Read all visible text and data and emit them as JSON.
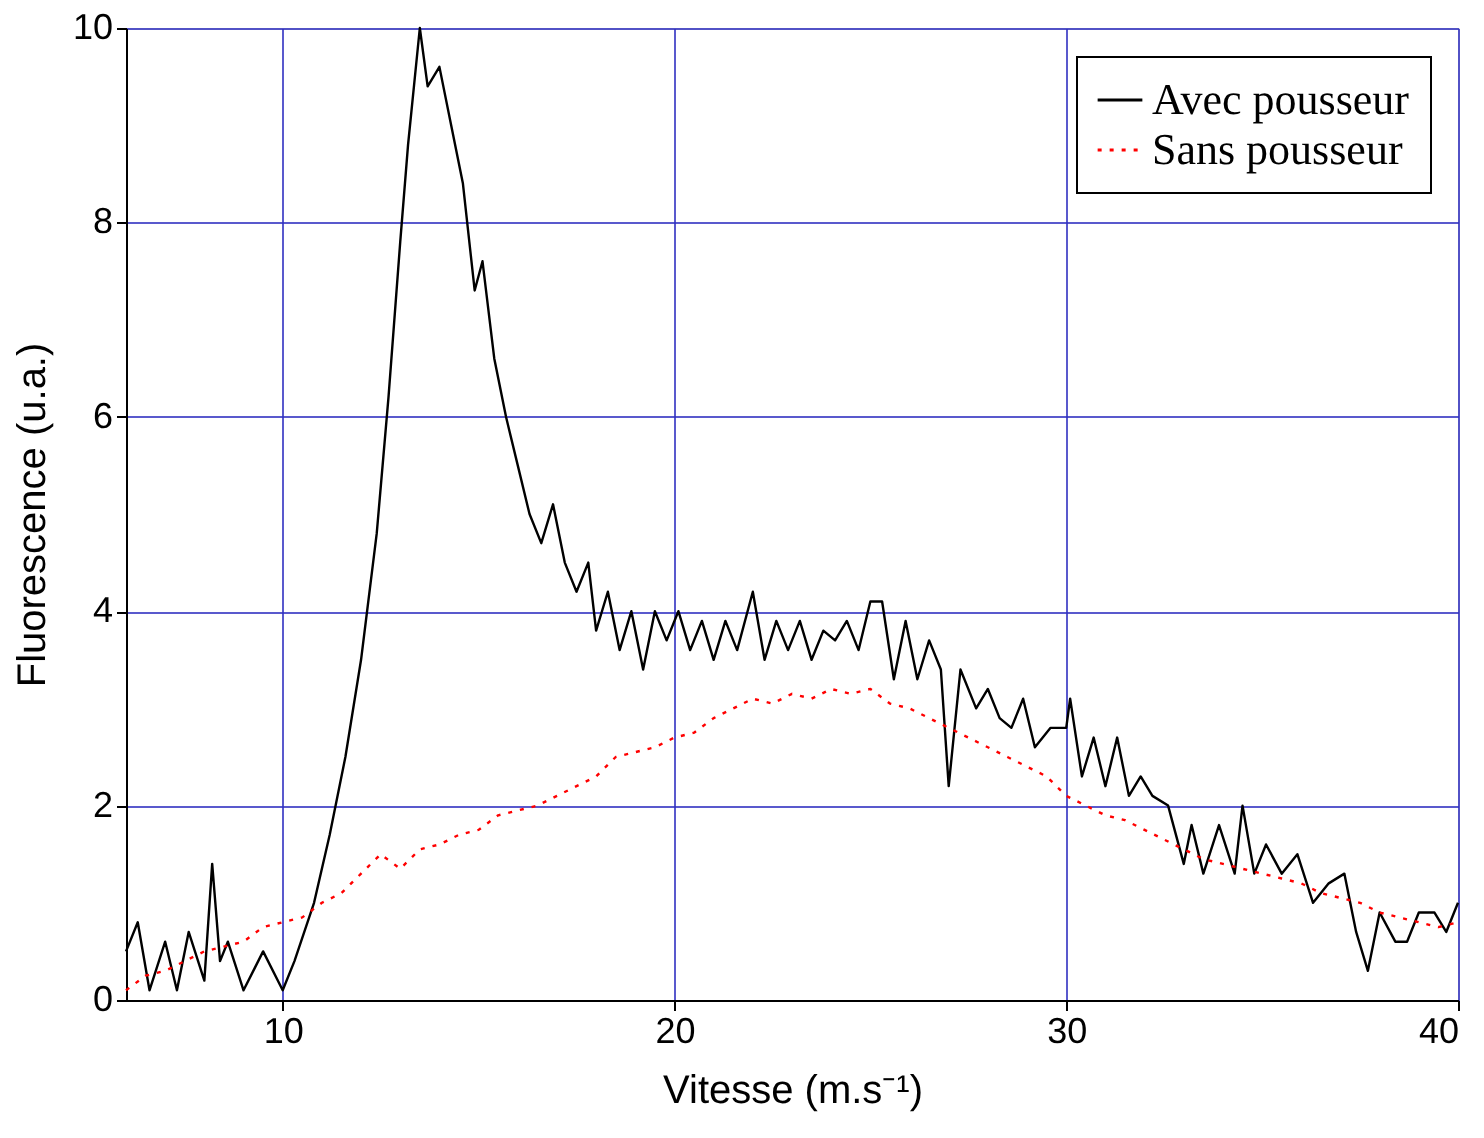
{
  "chart_data": {
    "type": "line",
    "xlabel": "Vitesse (m.s⁻¹)",
    "ylabel": "Fluorescence (u.a.)",
    "xlim": [
      6,
      40
    ],
    "ylim": [
      0,
      10
    ],
    "xticks": [
      10,
      20,
      30,
      40
    ],
    "yticks": [
      0,
      2,
      4,
      6,
      8,
      10
    ],
    "grid": true,
    "legend": "top right",
    "marker": "none",
    "series": [
      {
        "name": "Avec pousseur",
        "color": "#000000",
        "line_style": "solid",
        "x": [
          6,
          6.3,
          6.6,
          7,
          7.3,
          7.6,
          8,
          8.2,
          8.4,
          8.6,
          9,
          9.5,
          10,
          10.3,
          10.8,
          11.2,
          11.6,
          12,
          12.4,
          12.7,
          13,
          13.2,
          13.5,
          13.7,
          14,
          14.3,
          14.6,
          14.9,
          15.1,
          15.4,
          15.7,
          16,
          16.3,
          16.6,
          16.9,
          17.2,
          17.5,
          17.8,
          18,
          18.3,
          18.6,
          18.9,
          19.2,
          19.5,
          19.8,
          20.1,
          20.4,
          20.7,
          21,
          21.3,
          21.6,
          22,
          22.3,
          22.6,
          22.9,
          23.2,
          23.5,
          23.8,
          24.1,
          24.4,
          24.7,
          25,
          25.3,
          25.6,
          25.9,
          26.2,
          26.5,
          26.8,
          27,
          27.3,
          27.7,
          28,
          28.3,
          28.6,
          28.9,
          29.2,
          29.6,
          30,
          30.1,
          30.4,
          30.7,
          31,
          31.3,
          31.6,
          31.9,
          32.2,
          32.6,
          33,
          33.2,
          33.5,
          33.9,
          34.3,
          34.5,
          34.8,
          35.1,
          35.5,
          35.9,
          36.3,
          36.7,
          37.1,
          37.4,
          37.7,
          38,
          38.4,
          38.7,
          39,
          39.4,
          39.7,
          40
        ],
        "values": [
          0.5,
          0.8,
          0.1,
          0.6,
          0.1,
          0.7,
          0.2,
          1.4,
          0.4,
          0.6,
          0.1,
          0.5,
          0.1,
          0.4,
          1.0,
          1.7,
          2.5,
          3.5,
          4.8,
          6.2,
          7.8,
          8.8,
          10,
          9.4,
          9.6,
          9.0,
          8.4,
          7.3,
          7.6,
          6.6,
          6.0,
          5.5,
          5.0,
          4.7,
          5.1,
          4.5,
          4.2,
          4.5,
          3.8,
          4.2,
          3.6,
          4.0,
          3.4,
          4.0,
          3.7,
          4.0,
          3.6,
          3.9,
          3.5,
          3.9,
          3.6,
          4.2,
          3.5,
          3.9,
          3.6,
          3.9,
          3.5,
          3.8,
          3.7,
          3.9,
          3.6,
          4.1,
          4.1,
          3.3,
          3.9,
          3.3,
          3.7,
          3.4,
          2.2,
          3.4,
          3.0,
          3.2,
          2.9,
          2.8,
          3.1,
          2.6,
          2.8,
          2.8,
          3.1,
          2.3,
          2.7,
          2.2,
          2.7,
          2.1,
          2.3,
          2.1,
          2.0,
          1.4,
          1.8,
          1.3,
          1.8,
          1.3,
          2.0,
          1.3,
          1.6,
          1.3,
          1.5,
          1.0,
          1.2,
          1.3,
          0.7,
          0.3,
          0.9,
          0.6,
          0.6,
          0.9,
          0.9,
          0.7,
          1.0
        ]
      },
      {
        "name": "Sans pousseur",
        "color": "#ff0000",
        "line_style": "dotted",
        "x": [
          6,
          6.5,
          7,
          7.5,
          8,
          8.5,
          9,
          9.5,
          10,
          10.5,
          11,
          11.5,
          12,
          12.5,
          13,
          13.5,
          14,
          14.5,
          15,
          15.5,
          16,
          16.5,
          17,
          17.5,
          18,
          18.5,
          19,
          19.5,
          20,
          20.5,
          21,
          21.5,
          22,
          22.5,
          23,
          23.5,
          24,
          24.5,
          25,
          25.5,
          26,
          26.5,
          27,
          27.5,
          28,
          28.5,
          29,
          29.5,
          30,
          30.5,
          31,
          31.5,
          32,
          32.5,
          33,
          33.5,
          34,
          34.5,
          35,
          35.5,
          36,
          36.5,
          37,
          37.5,
          38,
          38.5,
          39,
          39.5,
          40
        ],
        "values": [
          0.1,
          0.25,
          0.3,
          0.4,
          0.5,
          0.55,
          0.6,
          0.75,
          0.8,
          0.85,
          1.0,
          1.1,
          1.3,
          1.5,
          1.35,
          1.55,
          1.6,
          1.7,
          1.75,
          1.9,
          1.95,
          2.0,
          2.1,
          2.2,
          2.3,
          2.5,
          2.55,
          2.6,
          2.7,
          2.75,
          2.9,
          3.0,
          3.1,
          3.05,
          3.15,
          3.1,
          3.2,
          3.15,
          3.2,
          3.05,
          3.0,
          2.9,
          2.8,
          2.7,
          2.6,
          2.5,
          2.4,
          2.3,
          2.1,
          2.0,
          1.9,
          1.85,
          1.75,
          1.65,
          1.55,
          1.45,
          1.4,
          1.35,
          1.3,
          1.25,
          1.2,
          1.1,
          1.05,
          1.0,
          0.9,
          0.85,
          0.8,
          0.75,
          0.8
        ]
      }
    ]
  }
}
